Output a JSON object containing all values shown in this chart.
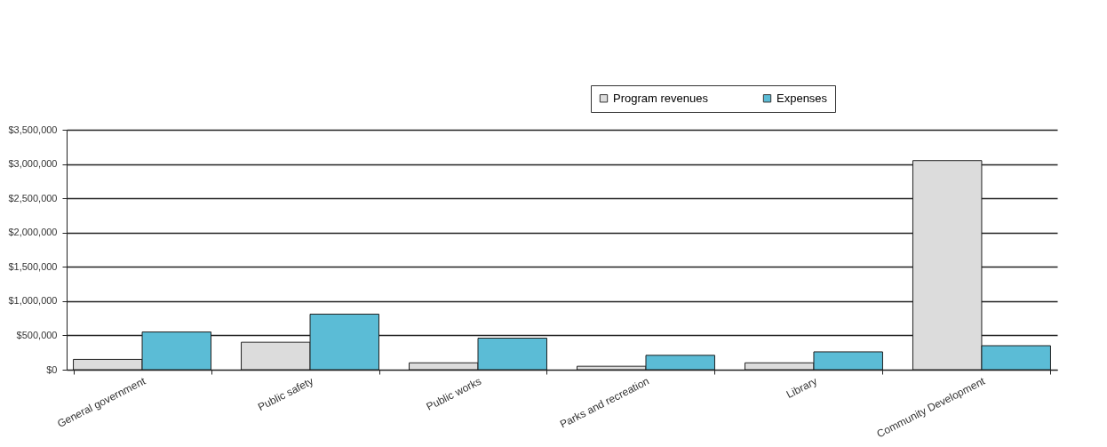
{
  "chart_data": {
    "type": "bar",
    "categories": [
      "General government",
      "Public safety",
      "Public works",
      "Parks and recreation",
      "Library",
      "Community Development"
    ],
    "series": [
      {
        "name": "Program revenues",
        "color": "#dcdcdc",
        "values": [
          150000,
          400000,
          100000,
          50000,
          100000,
          3050000
        ]
      },
      {
        "name": "Expenses",
        "color": "#5bbcd6",
        "values": [
          550000,
          810000,
          460000,
          210000,
          260000,
          350000
        ]
      }
    ],
    "ylim": [
      0,
      3500000
    ],
    "yticks": [
      {
        "value": 0,
        "label": "$0"
      },
      {
        "value": 500000,
        "label": "$500,000"
      },
      {
        "value": 1000000,
        "label": "$1,000,000"
      },
      {
        "value": 1500000,
        "label": "$1,500,000"
      },
      {
        "value": 2000000,
        "label": "$2,000,000"
      },
      {
        "value": 2500000,
        "label": "$2,500,000"
      },
      {
        "value": 3000000,
        "label": "$3,000,000"
      },
      {
        "value": 3500000,
        "label": "$3,500,000"
      }
    ],
    "grid": "y",
    "legend": "top right"
  }
}
